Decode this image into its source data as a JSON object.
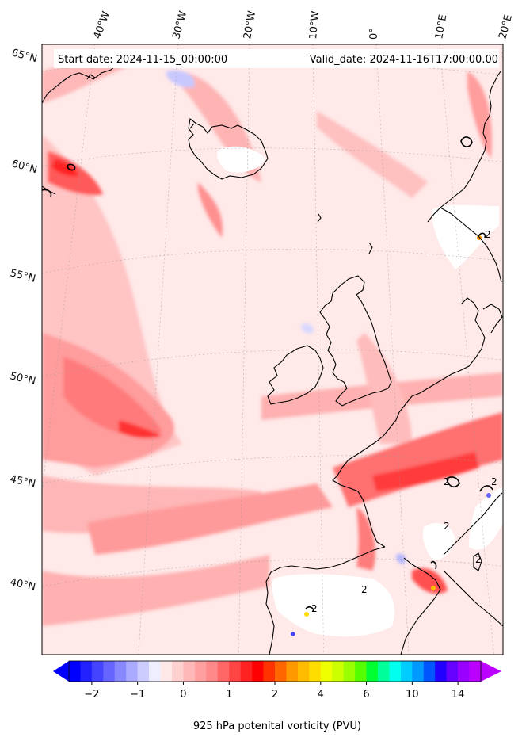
{
  "header": {
    "start_date": "Start date: 2024-11-15_00:00:00",
    "valid_date": "Valid_date: 2024-11-16T17:00:00.00"
  },
  "grid_labels": {
    "longitude": [
      "40°W",
      "30°W",
      "20°W",
      "10°W",
      "0°",
      "10°E",
      "20°E"
    ],
    "latitude": [
      "65°N",
      "60°N",
      "55°N",
      "50°N",
      "45°N",
      "40°N"
    ]
  },
  "contour_annotations": [
    "2",
    "2",
    "2",
    "2",
    "2",
    "2",
    "2"
  ],
  "colorbar": {
    "label": "925 hPa potenital vorticity (PVU)",
    "ticks": [
      "−2",
      "−1",
      "0",
      "1",
      "2",
      "4",
      "6",
      "10",
      "14"
    ],
    "colors": [
      "#0000ff",
      "#2222ff",
      "#4444ff",
      "#6666ff",
      "#8888ff",
      "#aaaaff",
      "#ccccff",
      "#eeeeff",
      "#ffe8e8",
      "#ffd0d0",
      "#ffb8b8",
      "#ffa0a0",
      "#ff8888",
      "#ff6666",
      "#ff4444",
      "#ff2222",
      "#ff0000",
      "#ff3300",
      "#ff6600",
      "#ff9900",
      "#ffbb00",
      "#ffdd00",
      "#eeff00",
      "#ccff00",
      "#99ff00",
      "#55ff00",
      "#00ff33",
      "#00ff99",
      "#00ffee",
      "#00ccff",
      "#0099ff",
      "#0055ff",
      "#2200ff",
      "#6600ff",
      "#9900ff",
      "#bb00ff"
    ]
  }
}
